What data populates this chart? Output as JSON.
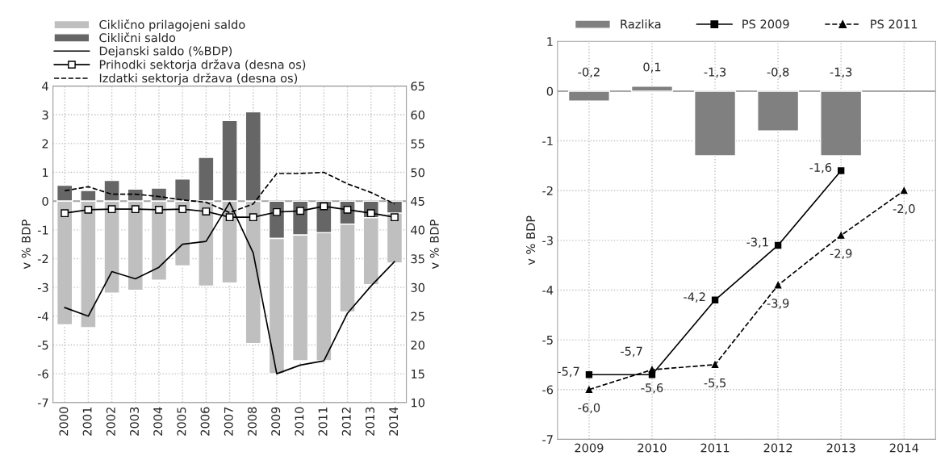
{
  "chart_data": [
    {
      "type": "bar",
      "stacked": true,
      "ylabel": "v % BDP",
      "y2label": "v % BDP",
      "categories": [
        "2000",
        "2001",
        "2002",
        "2003",
        "2004",
        "2005",
        "2006",
        "2007",
        "2008",
        "2009",
        "2010",
        "2011",
        "2012",
        "2013",
        "2014"
      ],
      "series": [
        {
          "name": "Ciklični saldo",
          "color": "#666666",
          "values": [
            0.55,
            0.37,
            0.72,
            0.42,
            0.45,
            0.77,
            1.52,
            2.8,
            3.1,
            -1.3,
            -1.18,
            -1.1,
            -0.8,
            -0.58,
            -0.42
          ]
        },
        {
          "name": "Ciklično prilagojeni saldo",
          "color": "#bfbfbf",
          "values": [
            -4.3,
            -4.4,
            -3.2,
            -3.1,
            -2.75,
            -2.25,
            -2.95,
            -2.85,
            -4.95,
            -4.7,
            -4.37,
            -4.45,
            -3.05,
            -2.32,
            -1.73
          ]
        },
        {
          "name": "Dejanski saldo (%BDP)",
          "type": "line",
          "color": "#000000",
          "marker": "none",
          "line_style": "solid",
          "values": [
            -3.7,
            -4.0,
            -2.45,
            -2.7,
            -2.3,
            -1.5,
            -1.4,
            -0.05,
            -1.8,
            -6.0,
            -5.7,
            -5.55,
            -3.9,
            -2.95,
            -2.1
          ]
        },
        {
          "name": "Prihodki sektorja država (desna os)",
          "type": "line",
          "axis": "y2",
          "color": "#000000",
          "marker": "square",
          "line_style": "solid",
          "values": [
            42.9,
            43.5,
            43.6,
            43.6,
            43.5,
            43.6,
            43.2,
            42.2,
            42.2,
            43.1,
            43.3,
            44.1,
            43.5,
            42.9,
            42.2
          ]
        },
        {
          "name": "Izdatki sektorja država (desna os)",
          "type": "line",
          "axis": "y2",
          "color": "#000000",
          "marker": "none",
          "line_style": "dashed",
          "values": [
            46.8,
            47.5,
            46.2,
            46.2,
            45.8,
            45.2,
            44.8,
            43.0,
            44.5,
            49.8,
            49.8,
            50.0,
            48.0,
            46.5,
            44.5
          ]
        }
      ],
      "ylim": [
        -7,
        4
      ],
      "yticks": [
        -7,
        -6,
        -5,
        -4,
        -3,
        -2,
        -1,
        0,
        1,
        2,
        3,
        4
      ],
      "y2lim": [
        10,
        65
      ],
      "y2ticks": [
        10,
        15,
        20,
        25,
        30,
        35,
        40,
        45,
        50,
        55,
        60,
        65
      ],
      "grid": true,
      "legend": "top left"
    },
    {
      "type": "bar",
      "ylabel": "v % BDP",
      "categories": [
        "2009",
        "2010",
        "2011",
        "2012",
        "2013",
        "2014"
      ],
      "series": [
        {
          "name": "Razlika",
          "color": "#808080",
          "values": [
            -0.2,
            0.1,
            -1.3,
            -0.8,
            -1.3,
            null
          ],
          "value_labels": [
            "-0,2",
            "0,1",
            "-1,3",
            "-0,8",
            "-1,3",
            null
          ]
        },
        {
          "name": "PS 2009",
          "type": "line",
          "color": "#000000",
          "marker": "square",
          "line_style": "solid",
          "values": [
            -5.7,
            -5.7,
            -4.2,
            -3.1,
            -1.6,
            null
          ],
          "value_labels": [
            "-5,7",
            "-5,7",
            "-4,2",
            "-3,1",
            "-1,6",
            null
          ]
        },
        {
          "name": "PS 2011",
          "type": "line",
          "color": "#000000",
          "marker": "triangle",
          "line_style": "dashed",
          "values": [
            -6.0,
            -5.6,
            -5.5,
            -3.9,
            -2.9,
            -2.0
          ],
          "value_labels": [
            "-6,0",
            "-5,6",
            "-5,5",
            "-3,9",
            "-2,9",
            "-2,0"
          ]
        }
      ],
      "ylim": [
        -7,
        1
      ],
      "yticks": [
        -7,
        -6,
        -5,
        -4,
        -3,
        -2,
        -1,
        0,
        1
      ],
      "grid": true,
      "legend": "top"
    }
  ]
}
